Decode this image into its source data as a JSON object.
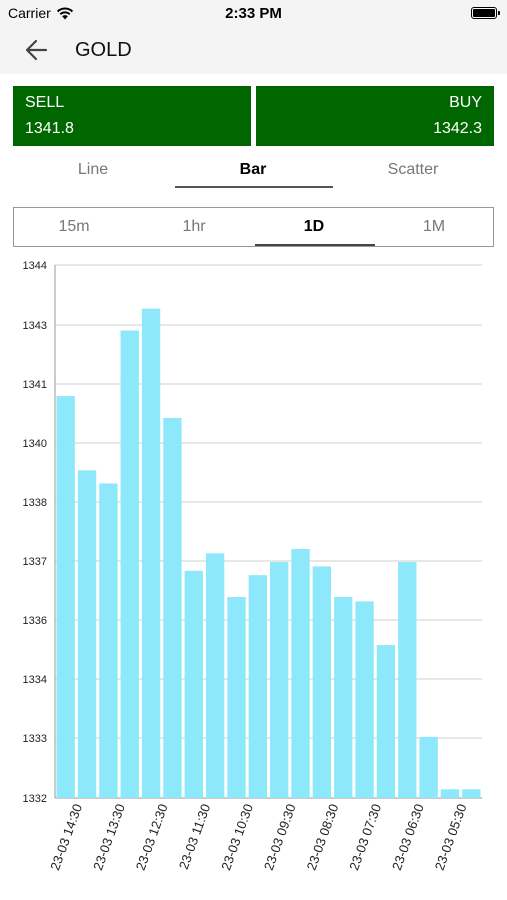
{
  "status_bar": {
    "carrier": "Carrier",
    "time": "2:33 PM"
  },
  "nav": {
    "title": "GOLD",
    "back_icon": "arrow-left-icon"
  },
  "quote": {
    "sell_label": "SELL",
    "sell_value": "1341.8",
    "buy_label": "BUY",
    "buy_value": "1342.3",
    "color": "#006600"
  },
  "chart_type_tabs": [
    {
      "label": "Line"
    },
    {
      "label": "Bar",
      "active": true
    },
    {
      "label": "Scatter"
    }
  ],
  "range_tabs": [
    {
      "label": "15m"
    },
    {
      "label": "1hr"
    },
    {
      "label": "1D",
      "active": true
    },
    {
      "label": "1M"
    }
  ],
  "chart_data": {
    "type": "bar",
    "bar_color": "#8ee8fb",
    "ytick_labels": [
      "1332",
      "1333",
      "1334",
      "1336",
      "1337",
      "1338",
      "1340",
      "1341",
      "1343",
      "1344"
    ],
    "ylim": [
      1332,
      1344.2
    ],
    "values": [
      1341.2,
      1339.5,
      1339.2,
      1342.7,
      1343.2,
      1340.7,
      1337.2,
      1337.6,
      1336.6,
      1337.1,
      1337.4,
      1337.7,
      1337.3,
      1336.6,
      1336.5,
      1335.5,
      1337.4,
      1333.4,
      1332.2,
      1332.2
    ],
    "xtick_labels": [
      "23-03 14:30",
      "23-03 13:30",
      "23-03 12:30",
      "23-03 11:30",
      "23-03 10:30",
      "23-03 09:30",
      "23-03 08:30",
      "23-03 07:30",
      "23-03 06:30",
      "23-03 05:30"
    ],
    "grid": true
  }
}
